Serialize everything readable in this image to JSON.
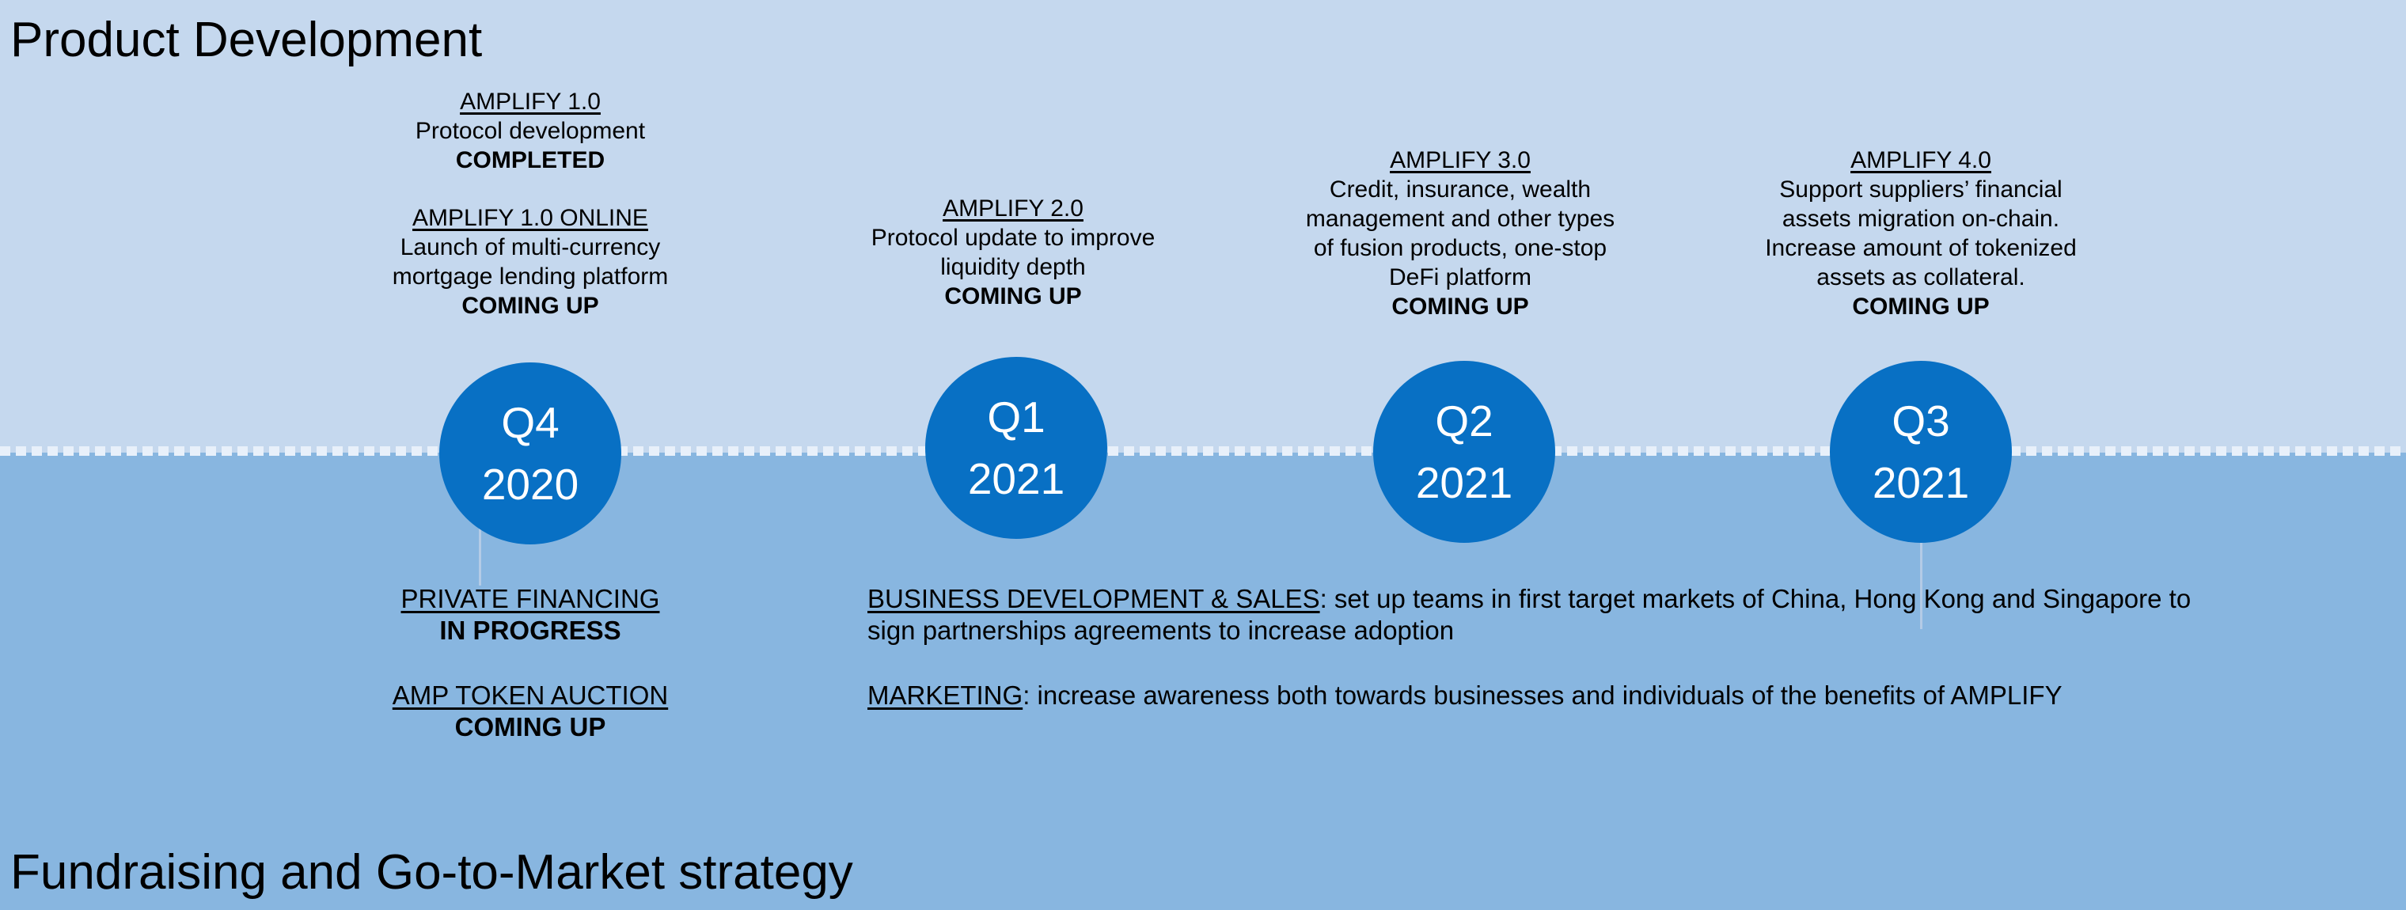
{
  "titles": {
    "top": "Product Development",
    "bottom": "Fundraising and Go-to-Market strategy"
  },
  "timeline": [
    {
      "quarter": "Q4",
      "year": "2020"
    },
    {
      "quarter": "Q1",
      "year": "2021"
    },
    {
      "quarter": "Q2",
      "year": "2021"
    },
    {
      "quarter": "Q3",
      "year": "2021"
    }
  ],
  "product": {
    "q4_2020": {
      "a_title": "AMPLIFY 1.0",
      "a_line1": "Protocol development",
      "a_status": "COMPLETED",
      "b_title": "AMPLIFY 1.0 ONLINE",
      "b_line1": "Launch of multi-currency",
      "b_line2": "mortgage lending platform",
      "b_status": "COMING UP"
    },
    "q1_2021": {
      "title": "AMPLIFY 2.0",
      "line1": "Protocol update to improve",
      "line2": "liquidity depth",
      "status": "COMING UP"
    },
    "q2_2021": {
      "title": "AMPLIFY 3.0",
      "line1": "Credit, insurance, wealth",
      "line2": "management and other types",
      "line3": "of fusion products, one-stop",
      "line4": "DeFi platform",
      "status": "COMING UP"
    },
    "q3_2021": {
      "title": "AMPLIFY 4.0",
      "line1": "Support suppliers’ financial",
      "line2": "assets migration on-chain.",
      "line3": "Increase amount of tokenized",
      "line4": "assets as collateral.",
      "status": "COMING UP"
    }
  },
  "fundraising": {
    "private_title": "PRIVATE FINANCING",
    "private_status": "IN PROGRESS",
    "auction_title": "AMP TOKEN AUCTION",
    "auction_status": "COMING UP"
  },
  "gtm": {
    "bd_title": "BUSINESS DEVELOPMENT & SALES",
    "bd_text": ": set up teams in first target markets of China, Hong Kong and Singapore to sign partnerships agreements to increase adoption",
    "mkt_title": "MARKETING",
    "mkt_text": ": increase awareness both towards businesses and individuals of the benefits of AMPLIFY"
  }
}
